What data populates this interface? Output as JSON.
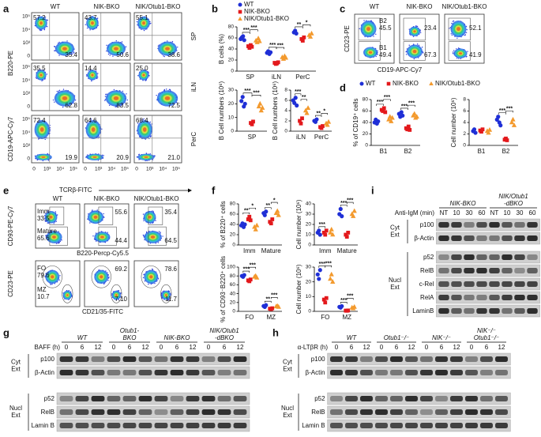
{
  "figure": {
    "groups": [
      {
        "name": "WT",
        "color": "#1f2fd6",
        "marker": "circle"
      },
      {
        "name": "NIK-BKO",
        "color": "#e3191c",
        "marker": "square"
      },
      {
        "name": "NIK/Otub1-BKO",
        "color": "#f39a2e",
        "marker": "triangle"
      }
    ],
    "a": {
      "label": "a",
      "columns": [
        "WT",
        "NIK-BKO",
        "NIK/Otub1-BKO"
      ],
      "y_axis_top": "B220-PE",
      "y_axis_bottom": "CD19-APC-Cy7",
      "x_ticks": [
        "0",
        "10³",
        "10⁴",
        "10⁵"
      ],
      "y_ticks": [
        "10⁵",
        "10⁴",
        "10³",
        "0"
      ],
      "rows": [
        {
          "name": "SP",
          "gates": [
            [
              "57.2",
              "35.4"
            ],
            [
              "43.7",
              "50.6"
            ],
            [
              "55.1",
              "38.6"
            ]
          ]
        },
        {
          "name": "iLN",
          "gates": [
            [
              "35.5",
              "62.8"
            ],
            [
              "14.4",
              "83.5"
            ],
            [
              "25.0",
              "72.5"
            ]
          ]
        },
        {
          "name": "PerC",
          "gates": [
            [
              "72.4",
              "19.9"
            ],
            [
              "64.6",
              "20.9"
            ],
            [
              "68.4",
              "21.0"
            ]
          ]
        }
      ]
    },
    "b": {
      "label": "b",
      "plots": [
        {
          "y_label": "B cells (%)",
          "ylim": [
            0,
            80
          ],
          "yticks": [
            0,
            20,
            40,
            60,
            80
          ],
          "categories": [
            "SP",
            "iLN",
            "PerC"
          ],
          "values": [
            [
              [
                58,
                61,
                63,
                56
              ],
              [
                33,
                36,
                31,
                34
              ],
              [
                70,
                73,
                68
              ]
            ],
            [
              [
                45,
                42,
                47,
                44
              ],
              [
                15,
                13,
                14,
                16
              ],
              [
                58,
                55,
                61
              ]
            ],
            [
              [
                55,
                52,
                59,
                54
              ],
              [
                25,
                22,
                27,
                24
              ],
              [
                65,
                62,
                68
              ]
            ]
          ],
          "significance": [
            [
              "***",
              "***"
            ],
            [
              "***",
              "***"
            ],
            [
              "**",
              "*"
            ]
          ]
        },
        {
          "y_label": "B Cell numbers (10⁶)",
          "ylim": [
            0,
            30
          ],
          "yticks": [
            0,
            10,
            20,
            30
          ],
          "categories": [
            "SP"
          ],
          "values": [
            [
              [
                22,
                25,
                18,
                20
              ]
            ],
            [
              [
                6,
                5,
                7
              ]
            ],
            [
              [
                18,
                20,
                15,
                17
              ]
            ]
          ],
          "significance": [
            [
              "***",
              "***"
            ]
          ]
        },
        {
          "y_label": "B Cell numbers (10⁶)",
          "ylim": [
            0,
            8
          ],
          "yticks": [
            0,
            2,
            4,
            6,
            8
          ],
          "categories": [
            "iLN",
            "PerC"
          ],
          "values": [
            [
              [
                6,
                5.5,
                6.5,
                5
              ],
              [
                2,
                1.8,
                2.3
              ]
            ],
            [
              [
                2,
                1.5,
                2.5
              ],
              [
                0.8,
                0.6,
                1
              ]
            ],
            [
              [
                4,
                3.5,
                4.5
              ],
              [
                1.5,
                1.2,
                1.8
              ]
            ]
          ],
          "significance": [
            [
              "***",
              "**"
            ],
            [
              "**",
              "*"
            ]
          ]
        }
      ]
    },
    "c": {
      "label": "c",
      "columns": [
        "WT",
        "NIK-BKO",
        "NIK/Otub1-BKO"
      ],
      "y_axis": "CD23-PE",
      "x_axis": "CD19-APC-Cy7",
      "gate_names": [
        "B2",
        "B1"
      ],
      "gates": [
        [
          "45.5",
          "49.4"
        ],
        [
          "23.4",
          "67.3"
        ],
        [
          "52.1",
          "41.9"
        ]
      ]
    },
    "d": {
      "label": "d",
      "plots": [
        {
          "y_label": "% of CD19⁺ cells",
          "ylim": [
            0,
            80
          ],
          "yticks": [
            0,
            20,
            40,
            60,
            80
          ],
          "categories": [
            "B1",
            "B2"
          ],
          "values": [
            [
              [
                40,
                45,
                38,
                42
              ],
              [
                55,
                50,
                58,
                52
              ]
            ],
            [
              [
                62,
                60,
                65,
                58
              ],
              [
                30,
                28,
                33,
                27
              ]
            ],
            [
              [
                45,
                50,
                42,
                48
              ],
              [
                52,
                55,
                48,
                50
              ]
            ]
          ],
          "significance": [
            [
              "***",
              "***"
            ],
            [
              "***",
              "***"
            ]
          ]
        },
        {
          "y_label": "Cell number (10⁶)",
          "ylim": [
            0,
            8
          ],
          "yticks": [
            0,
            2,
            4,
            6,
            8
          ],
          "categories": [
            "B1",
            "B2"
          ],
          "values": [
            [
              [
                2.5,
                2.8,
                2.2
              ],
              [
                4.5,
                5,
                4,
                3.5
              ]
            ],
            [
              [
                2.6,
                2.4,
                2.8
              ],
              [
                1,
                1.2,
                0.9
              ]
            ],
            [
              [
                2.5,
                2.2,
                2.7
              ],
              [
                4,
                4.5,
                3.5
              ]
            ]
          ],
          "significance": [
            null,
            [
              "***",
              "***"
            ]
          ]
        }
      ]
    },
    "e": {
      "label": "e",
      "arrow_label": "TCRβ-FITC",
      "columns": [
        "WT",
        "NIK-BKO",
        "NIK/Otub1-BKO"
      ],
      "rows": [
        {
          "y_axis": "CD93-PE-Cy7",
          "x_axis": "B220-Percp-Cy5.5",
          "gate_names": [
            "Imm",
            "Mature"
          ],
          "gates": [
            [
              "33.5",
              "65.6"
            ],
            [
              "55.6",
              "44.4"
            ],
            [
              "35.4",
              "64.5"
            ]
          ]
        },
        {
          "y_axis": "CD23-PE",
          "x_axis": "CD21/35-FITC",
          "gate_names": [
            "FO",
            "MZ"
          ],
          "gates": [
            [
              "79.6",
              "10.7"
            ],
            [
              "69.2",
              "7.10"
            ],
            [
              "78.6",
              "11.7"
            ]
          ]
        }
      ]
    },
    "f": {
      "label": "f",
      "plots": [
        {
          "y_label": "% of B220⁺ cells",
          "ylim": [
            0,
            80
          ],
          "yticks": [
            0,
            20,
            40,
            60,
            80
          ],
          "categories": [
            "Imm",
            "Mature"
          ],
          "values": [
            [
              [
                38,
                42,
                35,
                40
              ],
              [
                62,
                58,
                65
              ]
            ],
            [
              [
                50,
                55,
                48
              ],
              [
                45,
                42,
                50
              ]
            ],
            [
              [
                35,
                30,
                38
              ],
              [
                62,
                66,
                58
              ]
            ]
          ],
          "significance": [
            [
              "**",
              "*"
            ],
            [
              "**",
              "*"
            ]
          ]
        },
        {
          "y_label": "Cell number (10⁶)",
          "ylim": [
            0,
            40
          ],
          "yticks": [
            0,
            10,
            20,
            30,
            40
          ],
          "categories": [
            "Imm",
            "Mature"
          ],
          "values": [
            [
              [
                12,
                14,
                10
              ],
              [
                30,
                35,
                28
              ]
            ],
            [
              [
                12,
                10,
                14
              ],
              [
                10,
                8,
                12
              ]
            ],
            [
              [
                12,
                15,
                10
              ],
              [
                30,
                28,
                33
              ]
            ]
          ],
          "significance": [
            [
              "***",
              null
            ],
            [
              "***",
              "***"
            ]
          ]
        },
        {
          "y_label": "% of CD93⁻B220⁺ cells",
          "ylim": [
            0,
            100
          ],
          "yticks": [
            0,
            20,
            40,
            60,
            80,
            100
          ],
          "categories": [
            "FO",
            "MZ"
          ],
          "values": [
            [
              [
                80,
                78,
                82
              ],
              [
                12,
                10,
                14
              ]
            ],
            [
              [
                70,
                68,
                72
              ],
              [
                6,
                5,
                7
              ]
            ],
            [
              [
                78,
                80,
                76
              ],
              [
                11,
                12,
                10
              ]
            ]
          ],
          "significance": [
            [
              "***",
              "***"
            ],
            [
              "**",
              "***"
            ]
          ]
        },
        {
          "y_label": "Cell number (10⁶)",
          "ylim": [
            0,
            30
          ],
          "yticks": [
            0,
            10,
            20,
            30
          ],
          "categories": [
            "FO",
            "MZ"
          ],
          "values": [
            [
              [
                25,
                22,
                28
              ],
              [
                3,
                2.5,
                3.5
              ]
            ],
            [
              [
                8,
                6,
                9
              ],
              [
                0.5,
                0.4,
                0.6
              ]
            ],
            [
              [
                22,
                25,
                20
              ],
              [
                2.5,
                2,
                3
              ]
            ]
          ],
          "significance": [
            [
              "***",
              "***"
            ],
            [
              "***",
              "***"
            ]
          ]
        }
      ]
    },
    "i": {
      "label": "i",
      "treatment": "Anti-IgM (min)",
      "groups": [
        {
          "name_lines": [
            "NIK-BKO"
          ],
          "lanes": [
            "NT",
            "10",
            "30",
            "60"
          ]
        },
        {
          "name_lines": [
            "NIK/Otub1",
            "-dBKO"
          ],
          "lanes": [
            "NT",
            "10",
            "30",
            "60"
          ]
        }
      ],
      "fractions": [
        {
          "name_lines": [
            "Cyt",
            "Ext"
          ],
          "bands": [
            "p100",
            "β-Actin"
          ]
        },
        {
          "name_lines": [
            "Nucl",
            "Ext"
          ],
          "bands": [
            "p52",
            "RelB",
            "c-Rel",
            "RelA",
            "LaminB"
          ]
        }
      ]
    },
    "g": {
      "label": "g",
      "treatment": "BAFF (h)",
      "groups": [
        {
          "name_lines": [
            "WT"
          ],
          "lanes": [
            "0",
            "6",
            "12"
          ]
        },
        {
          "name_lines": [
            "Otub1-",
            "BKO"
          ],
          "lanes": [
            "0",
            "6",
            "12"
          ]
        },
        {
          "name_lines": [
            "NIK-BKO"
          ],
          "lanes": [
            "0",
            "6",
            "12"
          ]
        },
        {
          "name_lines": [
            "NIK/Otub1",
            "-dBKO"
          ],
          "lanes": [
            "0",
            "6",
            "12"
          ]
        }
      ],
      "fractions": [
        {
          "name_lines": [
            "Cyt",
            "Ext"
          ],
          "bands": [
            "p100",
            "β-Actin"
          ]
        },
        {
          "name_lines": [
            "Nucl",
            "Ext"
          ],
          "bands": [
            "p52",
            "RelB",
            "Lamin B"
          ]
        }
      ]
    },
    "h": {
      "label": "h",
      "treatment": "α-LTβR (h)",
      "groups": [
        {
          "name_lines": [
            "WT"
          ],
          "lanes": [
            "0",
            "6",
            "12"
          ]
        },
        {
          "name_lines": [
            "Otub1⁻/⁻"
          ],
          "lanes": [
            "0",
            "6",
            "12"
          ]
        },
        {
          "name_lines": [
            "NIK⁻/⁻"
          ],
          "lanes": [
            "0",
            "6",
            "12"
          ]
        },
        {
          "name_lines": [
            "NIK⁻/⁻",
            "Otub1⁻/⁻"
          ],
          "lanes": [
            "0",
            "6",
            "12"
          ]
        }
      ],
      "fractions": [
        {
          "name_lines": [
            "Cyt",
            "Ext"
          ],
          "bands": [
            "p100",
            "β-Actin"
          ]
        },
        {
          "name_lines": [
            "Nucl",
            "Ext"
          ],
          "bands": [
            "p52",
            "RelB",
            "Lamin B"
          ]
        }
      ]
    }
  }
}
